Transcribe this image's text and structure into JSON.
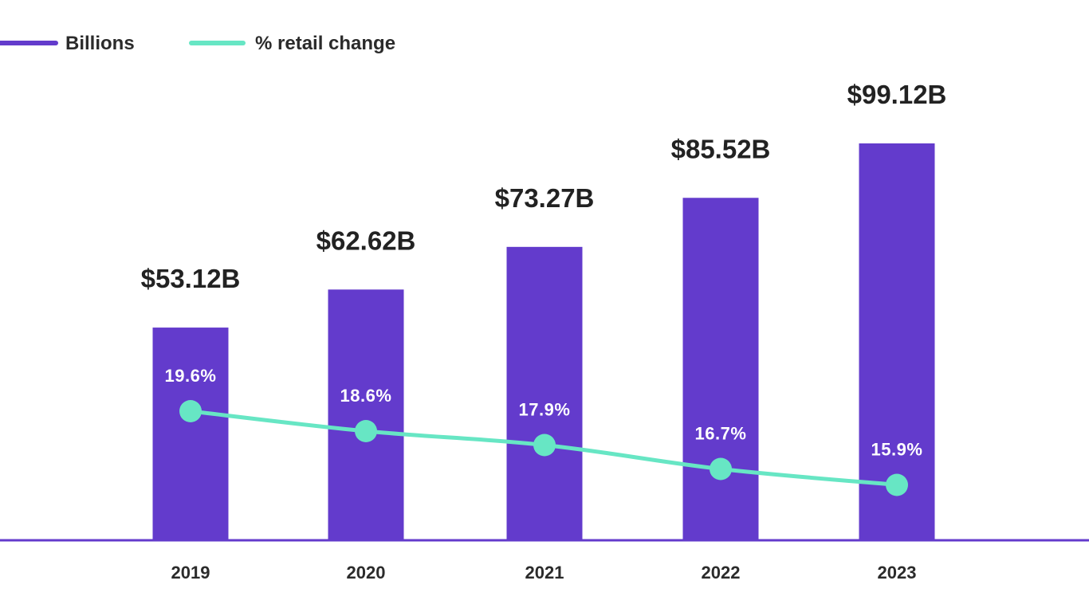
{
  "chart_data": {
    "type": "bar",
    "categories": [
      "2019",
      "2020",
      "2021",
      "2022",
      "2023"
    ],
    "series": [
      {
        "name": "Billions",
        "type": "bar",
        "values": [
          53.12,
          62.62,
          73.27,
          85.52,
          99.12
        ],
        "labels": [
          "$53.12B",
          "$62.62B",
          "$73.27B",
          "$85.52B",
          "$99.12B"
        ],
        "color": "#633bcc"
      },
      {
        "name": "% retail change",
        "type": "line",
        "values": [
          19.6,
          18.6,
          17.9,
          16.7,
          15.9
        ],
        "labels": [
          "19.6%",
          "18.6%",
          "17.9%",
          "16.7%",
          "15.9%"
        ],
        "color": "#67e6c4"
      }
    ],
    "legend": {
      "position": "top-left"
    },
    "grid": false
  }
}
